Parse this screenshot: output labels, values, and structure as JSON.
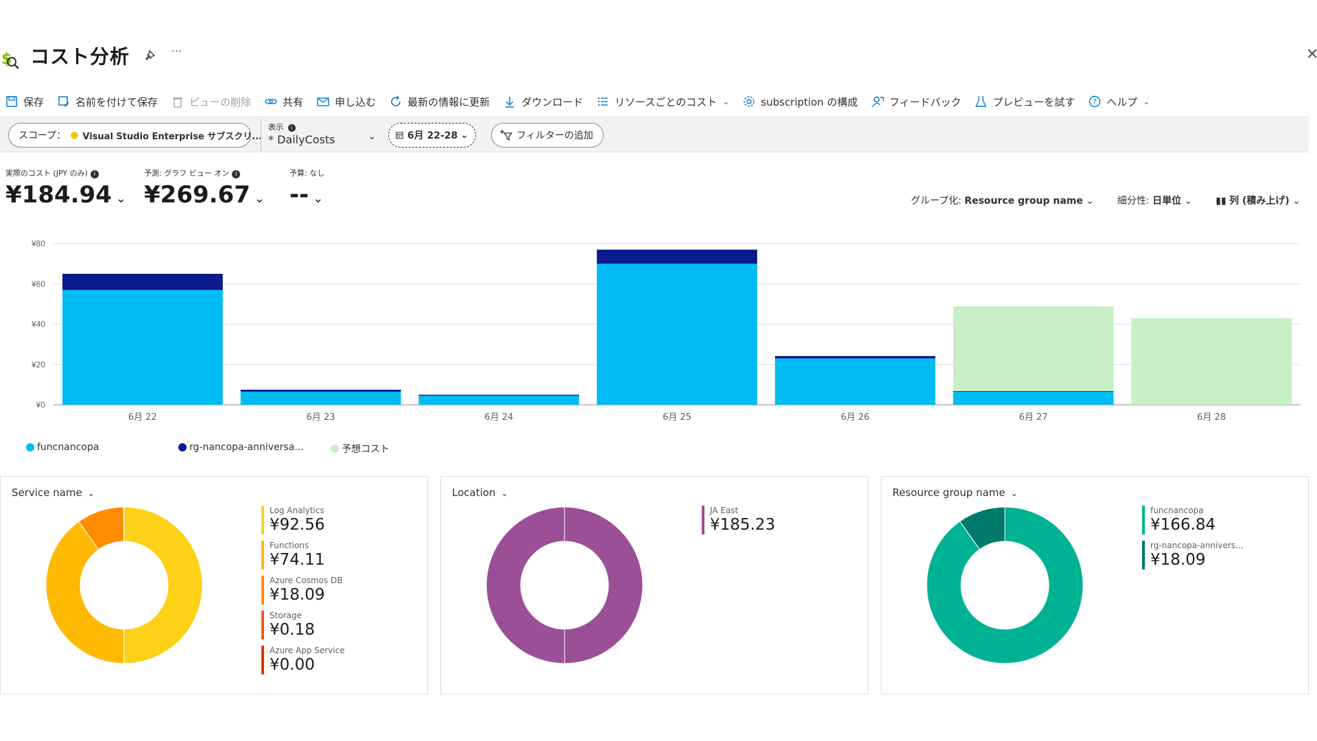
{
  "header": {
    "title": "コスト分析"
  },
  "toolbar": [
    {
      "label": "保存",
      "icon": "save-icon",
      "disabled": false
    },
    {
      "label": "名前を付けて保存",
      "icon": "save-as-icon",
      "disabled": false
    },
    {
      "label": "ビューの削除",
      "icon": "trash-icon",
      "disabled": true
    },
    {
      "label": "共有",
      "icon": "link-icon",
      "disabled": false
    },
    {
      "label": "申し込む",
      "icon": "mail-icon",
      "disabled": false
    },
    {
      "label": "最新の情報に更新",
      "icon": "refresh-icon",
      "disabled": false
    },
    {
      "label": "ダウンロード",
      "icon": "download-icon",
      "disabled": false
    },
    {
      "label": "リソースごとのコスト",
      "icon": "list-icon",
      "disabled": false,
      "dropdown": true
    },
    {
      "label": "subscription の構成",
      "icon": "gear-icon",
      "disabled": false
    },
    {
      "label": "フィードバック",
      "icon": "feedback-icon",
      "disabled": false
    },
    {
      "label": "プレビューを試す",
      "icon": "flask-icon",
      "disabled": false
    },
    {
      "label": "ヘルプ",
      "icon": "help-icon",
      "disabled": false,
      "dropdown": true
    }
  ],
  "filters": {
    "scope_label": "スコープ：",
    "scope_value": "Visual Studio Enterprise サブスクリ...",
    "view_label": "表示",
    "view_value": "* DailyCosts",
    "date_range": "6月 22-28",
    "add_filter": "フィルターの追加"
  },
  "kpis": [
    {
      "label": "実際のコスト (JPY のみ)",
      "value": "¥184.94",
      "info": true
    },
    {
      "label": "予測: グラフ ビュー オン",
      "value": "¥269.67",
      "info": true
    },
    {
      "label": "予算: なし",
      "value": "--",
      "info": false
    }
  ],
  "controls": {
    "group_prefix": "グループ化: ",
    "group_value": "Resource group name",
    "granularity_prefix": "細分性: ",
    "granularity_value": "日単位",
    "chart_type": "列 (積み上げ)"
  },
  "colors": {
    "funcnancopa": "#00bcf2",
    "rg": "#0b1a8c",
    "forecast": "#c8efc5"
  },
  "chart_data": {
    "type": "bar",
    "stacked": true,
    "categories": [
      "6月 22",
      "6月 23",
      "6月 24",
      "6月 25",
      "6月 26",
      "6月 27",
      "6月 28"
    ],
    "ytick_labels": [
      "¥0",
      "¥20",
      "¥40",
      "¥60",
      "¥80"
    ],
    "ylim": [
      0,
      80
    ],
    "series": [
      {
        "name": "funcnancopa",
        "values": [
          57,
          6.5,
          4.5,
          70,
          23,
          6.5,
          0
        ]
      },
      {
        "name": "rg-nancopa-anniversa...",
        "values": [
          8,
          1,
          0.5,
          7,
          1.2,
          0.3,
          0
        ]
      },
      {
        "name": "予想コスト",
        "values": [
          0,
          0,
          0,
          0,
          0,
          42,
          43
        ]
      }
    ]
  },
  "panels": [
    {
      "title": "Service name",
      "slices": [
        {
          "label": "Log Analytics",
          "value": "¥92.56",
          "num": 92.56,
          "color": "#fcd116"
        },
        {
          "label": "Functions",
          "value": "¥74.11",
          "num": 74.11,
          "color": "#ffb900"
        },
        {
          "label": "Azure Cosmos DB",
          "value": "¥18.09",
          "num": 18.09,
          "color": "#ff8c00"
        },
        {
          "label": "Storage",
          "value": "¥0.18",
          "num": 0.18,
          "color": "#e0611a"
        },
        {
          "label": "Azure App Service",
          "value": "¥0.00",
          "num": 0.0,
          "color": "#d83b01"
        }
      ]
    },
    {
      "title": "Location",
      "slices": [
        {
          "label": "JA East",
          "value": "¥185.23",
          "num": 185.23,
          "color": "#9b4f96"
        }
      ]
    },
    {
      "title": "Resource group name",
      "slices": [
        {
          "label": "funcnancopa",
          "value": "¥166.84",
          "num": 166.84,
          "color": "#00b294"
        },
        {
          "label": "rg-nancopa-annivers...",
          "value": "¥18.09",
          "num": 18.09,
          "color": "#007a6a"
        }
      ]
    }
  ]
}
